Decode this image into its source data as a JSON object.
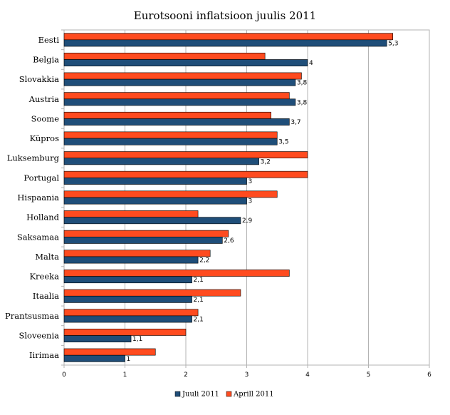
{
  "chart_data": {
    "type": "bar",
    "orientation": "horizontal",
    "title": "Eurotsooni inflatsioon juulis 2011",
    "xlabel": "",
    "ylabel": "",
    "xlim": [
      0,
      6
    ],
    "x_ticks": [
      "0",
      "1",
      "2",
      "3",
      "4",
      "5",
      "6"
    ],
    "grid": true,
    "legend_position": "bottom",
    "categories": [
      "Eesti",
      "Belgia",
      "Slovakkia",
      "Austria",
      "Soome",
      "Küpros",
      "Luksemburg",
      "Portugal",
      "Hispaania",
      "Holland",
      "Saksamaa",
      "Malta",
      "Kreeka",
      "Itaalia",
      "Prantsusmaa",
      "Sloveenia",
      "Iirimaa"
    ],
    "series": [
      {
        "name": "Juuli 2011",
        "color": "#1f4e79",
        "values": [
          5.3,
          4.0,
          3.8,
          3.8,
          3.7,
          3.5,
          3.2,
          3.0,
          3.0,
          2.9,
          2.6,
          2.2,
          2.1,
          2.1,
          2.1,
          1.1,
          1.0
        ],
        "labels": [
          "5,3",
          "4",
          "3,8",
          "3,8",
          "3,7",
          "3,5",
          "3,2",
          "3",
          "3",
          "2,9",
          "2,6",
          "2,2",
          "2,1",
          "2,1",
          "2,1",
          "1,1",
          "1"
        ]
      },
      {
        "name": "Aprill 2011",
        "color": "#ff4b1f",
        "values": [
          5.4,
          3.3,
          3.9,
          3.7,
          3.4,
          3.5,
          4.0,
          4.0,
          3.5,
          2.2,
          2.7,
          2.4,
          3.7,
          2.9,
          2.2,
          2.0,
          1.5
        ]
      }
    ]
  }
}
